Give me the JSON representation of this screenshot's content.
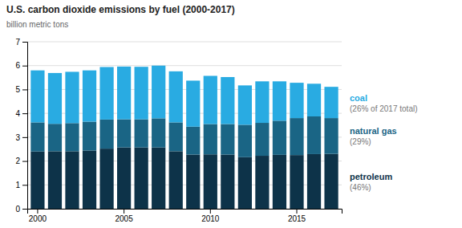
{
  "chart_data": {
    "type": "bar",
    "stacked": true,
    "title": "U.S. carbon dioxide emissions by fuel (2000-2017)",
    "ylabel": "billion metric tons",
    "categories": [
      "2000",
      null,
      null,
      null,
      null,
      "2005",
      null,
      null,
      null,
      null,
      "2010",
      null,
      null,
      null,
      null,
      "2015",
      null,
      null
    ],
    "series": [
      {
        "name": "petroleum",
        "color": "#0d3349",
        "annotation": "(46%)",
        "values": [
          2.4,
          2.41,
          2.41,
          2.44,
          2.52,
          2.57,
          2.57,
          2.57,
          2.41,
          2.27,
          2.28,
          2.27,
          2.16,
          2.22,
          2.26,
          2.25,
          2.29,
          2.3
        ]
      },
      {
        "name": "natural gas",
        "color": "#1a6585",
        "annotation": "(29%)",
        "values": [
          1.22,
          1.15,
          1.18,
          1.21,
          1.22,
          1.18,
          1.18,
          1.22,
          1.21,
          1.17,
          1.27,
          1.28,
          1.36,
          1.38,
          1.43,
          1.55,
          1.58,
          1.5
        ]
      },
      {
        "name": "coal",
        "color": "#29abe2",
        "annotation": "(26% of 2017 total)",
        "values": [
          2.18,
          2.13,
          2.15,
          2.15,
          2.2,
          2.21,
          2.2,
          2.21,
          2.14,
          1.93,
          2.02,
          1.97,
          1.65,
          1.74,
          1.65,
          1.48,
          1.37,
          1.31
        ]
      }
    ],
    "ylim": [
      0,
      7
    ],
    "yticks": [
      0,
      1,
      2,
      3,
      4,
      5,
      6,
      7
    ],
    "grid": true
  }
}
